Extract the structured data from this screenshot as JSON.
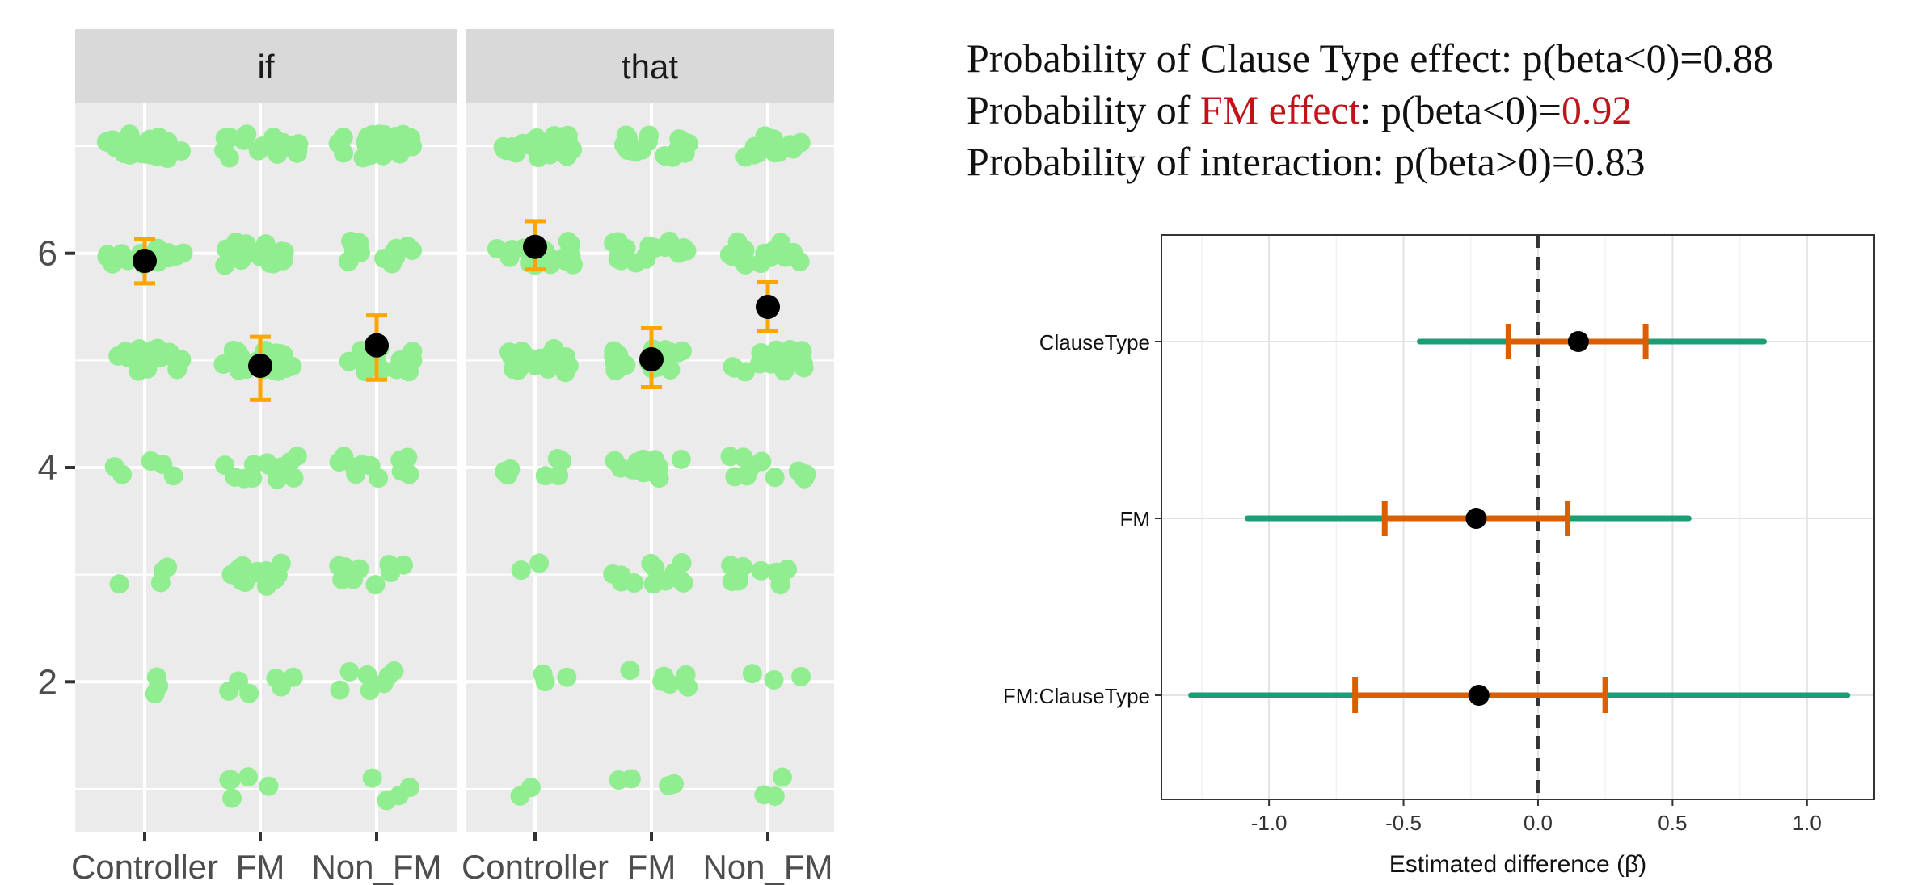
{
  "colors": {
    "panel_bg": "#ebebeb",
    "strip_bg": "#d9d9d9",
    "grid": "#ffffff",
    "raw_points": "#90ee90",
    "mean_point": "#000000",
    "error_bar": "#ffa500",
    "interval_outer": "#1b9e77",
    "interval_inner": "#d95f02",
    "highlight_text": "#c0141b"
  },
  "stats_text": {
    "line1": "Probability of Clause Type effect: p(beta<0)=0.88",
    "line2_prefix": "Probability of ",
    "line2_highlight": "FM effect",
    "line2_mid": ": p(beta<0)=",
    "line2_value": "0.92",
    "line3": "Probability of interaction: p(beta>0)=0.83"
  },
  "chart_data": [
    {
      "type": "scatter",
      "description_key": "ratings_by_condition",
      "facets": [
        "if",
        "that"
      ],
      "categories": [
        "Controller",
        "FM",
        "Non_FM"
      ],
      "y_ticks": [
        2,
        4,
        6
      ],
      "ylim": [
        0.6,
        7.4
      ],
      "grid": true,
      "raw_levels": [
        1,
        2,
        3,
        4,
        5,
        6,
        7
      ],
      "raw_counts": {
        "if": {
          "Controller": [
            0,
            3,
            4,
            5,
            22,
            18,
            25
          ],
          "FM": [
            5,
            6,
            14,
            12,
            20,
            16,
            20
          ],
          "Non_FM": [
            4,
            7,
            10,
            12,
            18,
            14,
            22
          ]
        },
        "that": {
          "Controller": [
            2,
            3,
            2,
            7,
            20,
            18,
            25
          ],
          "FM": [
            4,
            6,
            12,
            14,
            20,
            18,
            18
          ],
          "Non_FM": [
            3,
            3,
            10,
            10,
            20,
            18,
            16
          ]
        }
      },
      "means": {
        "if": {
          "Controller": {
            "mean": 5.93,
            "lower": 5.72,
            "upper": 6.13
          },
          "FM": {
            "mean": 4.95,
            "lower": 4.63,
            "upper": 5.22
          },
          "Non_FM": {
            "mean": 5.14,
            "lower": 4.82,
            "upper": 5.42
          }
        },
        "that": {
          "Controller": {
            "mean": 6.06,
            "lower": 5.85,
            "upper": 6.3
          },
          "FM": {
            "mean": 5.01,
            "lower": 4.75,
            "upper": 5.3
          },
          "Non_FM": {
            "mean": 5.5,
            "lower": 5.27,
            "upper": 5.73
          }
        }
      }
    },
    {
      "type": "interval",
      "xlabel": "Estimated difference (β̂)",
      "xlim": [
        -1.4,
        1.25
      ],
      "x_ticks": [
        -1.0,
        -0.5,
        0.0,
        0.5,
        1.0
      ],
      "x_tick_labels": [
        "-1.0",
        "-0.5",
        "0.0",
        "0.5",
        "1.0"
      ],
      "reference_line": 0,
      "terms": [
        {
          "name": "ClauseType",
          "estimate": 0.15,
          "inner": [
            -0.11,
            0.4
          ],
          "outer": [
            -0.44,
            0.84
          ]
        },
        {
          "name": "FM",
          "estimate": -0.23,
          "inner": [
            -0.57,
            0.11
          ],
          "outer": [
            -1.08,
            0.56
          ]
        },
        {
          "name": "FM:ClauseType",
          "estimate": -0.22,
          "inner": [
            -0.68,
            0.25
          ],
          "outer": [
            -1.29,
            1.15
          ]
        }
      ]
    }
  ]
}
